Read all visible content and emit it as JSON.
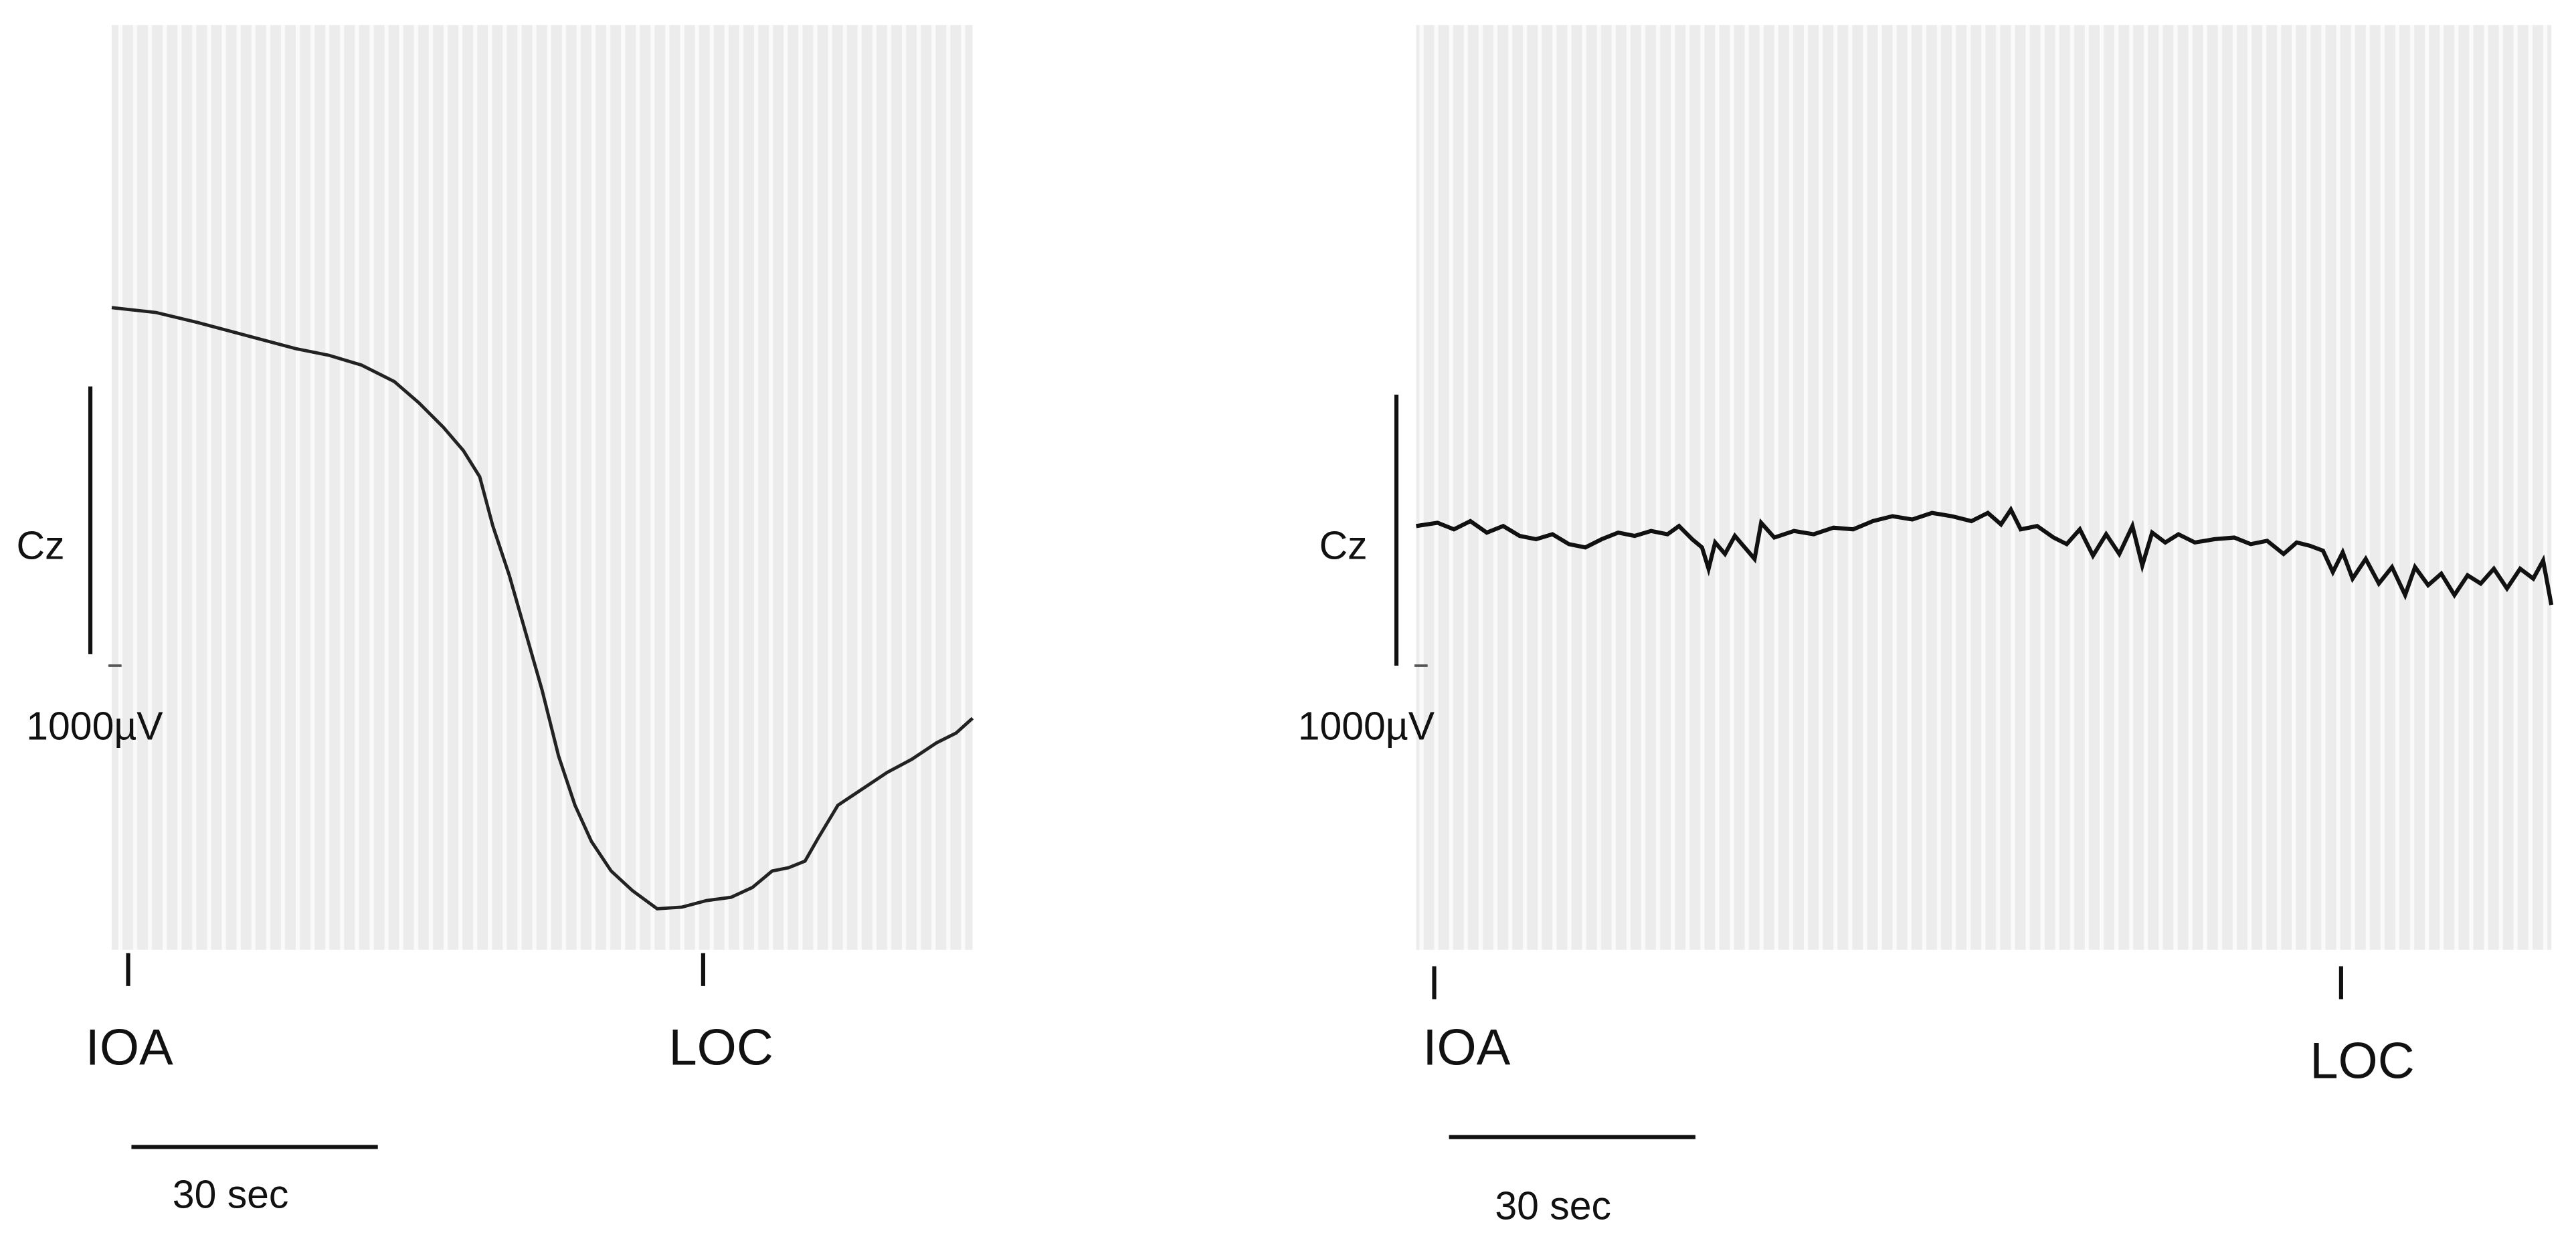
{
  "panels": [
    {
      "channel": "Cz",
      "voltage_scale": "1000µV",
      "markers": [
        "IOA",
        "LOC"
      ],
      "time_scale": "30 sec"
    },
    {
      "channel": "Cz",
      "voltage_scale": "1000µV",
      "markers": [
        "IOA",
        "LOC"
      ],
      "time_scale": "30 sec"
    }
  ]
}
